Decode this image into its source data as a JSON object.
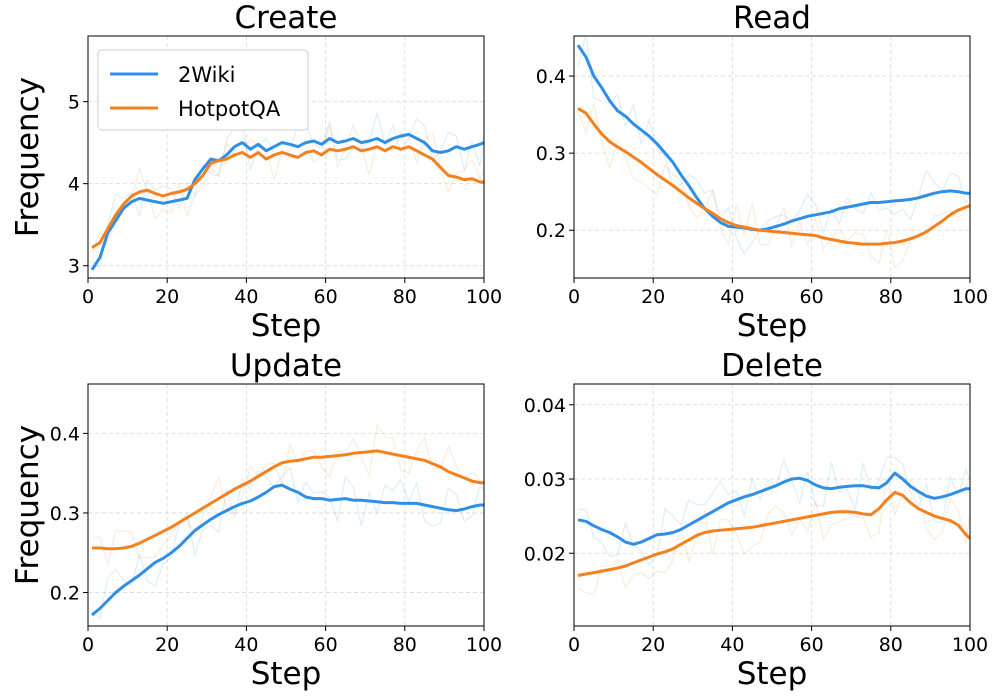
{
  "colors": {
    "2Wiki": "#2f8fe6",
    "HotpotQA": "#f5801e"
  },
  "legend": {
    "items": [
      "2Wiki",
      "HotpotQA"
    ]
  },
  "chart_data": [
    {
      "type": "line",
      "title": "Create",
      "xlabel": "Step",
      "ylabel": "Frequency",
      "xlim": [
        0,
        100
      ],
      "ylim": [
        2.85,
        5.8
      ],
      "xticks": [
        "0",
        "20",
        "40",
        "60",
        "80",
        "100"
      ],
      "yticks": [
        "3",
        "4",
        "5"
      ],
      "x": [
        1,
        3,
        5,
        7,
        9,
        11,
        13,
        15,
        17,
        19,
        21,
        23,
        25,
        27,
        29,
        31,
        33,
        35,
        37,
        39,
        41,
        43,
        45,
        47,
        49,
        51,
        53,
        55,
        57,
        59,
        61,
        63,
        65,
        67,
        69,
        71,
        73,
        75,
        77,
        79,
        81,
        83,
        85,
        87,
        89,
        91,
        93,
        95,
        97,
        99,
        100
      ],
      "series": [
        {
          "name": "2Wiki",
          "values": [
            2.95,
            3.1,
            3.4,
            3.55,
            3.7,
            3.78,
            3.82,
            3.8,
            3.78,
            3.76,
            3.78,
            3.8,
            3.82,
            4.05,
            4.18,
            4.3,
            4.28,
            4.35,
            4.45,
            4.5,
            4.42,
            4.48,
            4.4,
            4.45,
            4.5,
            4.48,
            4.45,
            4.5,
            4.52,
            4.48,
            4.55,
            4.5,
            4.52,
            4.55,
            4.5,
            4.52,
            4.55,
            4.5,
            4.55,
            4.58,
            4.6,
            4.55,
            4.5,
            4.4,
            4.38,
            4.4,
            4.45,
            4.42,
            4.45,
            4.48,
            4.5
          ]
        },
        {
          "name": "HotpotQA",
          "values": [
            3.22,
            3.28,
            3.45,
            3.62,
            3.75,
            3.85,
            3.9,
            3.92,
            3.88,
            3.85,
            3.88,
            3.9,
            3.93,
            4.0,
            4.1,
            4.25,
            4.28,
            4.3,
            4.35,
            4.38,
            4.32,
            4.38,
            4.3,
            4.35,
            4.38,
            4.35,
            4.32,
            4.38,
            4.4,
            4.35,
            4.42,
            4.4,
            4.42,
            4.45,
            4.4,
            4.42,
            4.45,
            4.4,
            4.45,
            4.42,
            4.45,
            4.4,
            4.35,
            4.3,
            4.2,
            4.1,
            4.08,
            4.05,
            4.06,
            4.02,
            4.02
          ]
        }
      ]
    },
    {
      "type": "line",
      "title": "Read",
      "xlabel": "Step",
      "ylabel": "",
      "xlim": [
        0,
        100
      ],
      "ylim": [
        0.138,
        0.452
      ],
      "xticks": [
        "0",
        "20",
        "40",
        "60",
        "80",
        "100"
      ],
      "yticks": [
        "0.2",
        "0.3",
        "0.4"
      ],
      "x": [
        1,
        3,
        5,
        7,
        9,
        11,
        13,
        15,
        17,
        19,
        21,
        23,
        25,
        27,
        29,
        31,
        33,
        35,
        37,
        39,
        41,
        43,
        45,
        47,
        49,
        51,
        53,
        55,
        57,
        59,
        61,
        63,
        65,
        67,
        69,
        71,
        73,
        75,
        77,
        79,
        81,
        83,
        85,
        87,
        89,
        91,
        93,
        95,
        97,
        99,
        100
      ],
      "series": [
        {
          "name": "2Wiki",
          "values": [
            0.44,
            0.425,
            0.4,
            0.385,
            0.368,
            0.355,
            0.348,
            0.338,
            0.33,
            0.322,
            0.312,
            0.3,
            0.288,
            0.272,
            0.258,
            0.242,
            0.228,
            0.218,
            0.21,
            0.205,
            0.204,
            0.203,
            0.201,
            0.2,
            0.202,
            0.205,
            0.208,
            0.212,
            0.215,
            0.218,
            0.22,
            0.222,
            0.224,
            0.228,
            0.23,
            0.232,
            0.234,
            0.236,
            0.236,
            0.237,
            0.238,
            0.239,
            0.24,
            0.242,
            0.245,
            0.248,
            0.25,
            0.251,
            0.25,
            0.248,
            0.248
          ]
        },
        {
          "name": "HotpotQA",
          "values": [
            0.358,
            0.352,
            0.338,
            0.325,
            0.315,
            0.308,
            0.302,
            0.295,
            0.288,
            0.28,
            0.272,
            0.265,
            0.258,
            0.25,
            0.242,
            0.235,
            0.228,
            0.222,
            0.215,
            0.21,
            0.206,
            0.204,
            0.202,
            0.2,
            0.199,
            0.198,
            0.197,
            0.196,
            0.195,
            0.194,
            0.193,
            0.19,
            0.188,
            0.186,
            0.184,
            0.183,
            0.182,
            0.182,
            0.182,
            0.183,
            0.184,
            0.186,
            0.189,
            0.193,
            0.198,
            0.205,
            0.212,
            0.22,
            0.226,
            0.23,
            0.232
          ]
        }
      ]
    },
    {
      "type": "line",
      "title": "Update",
      "xlabel": "Step",
      "ylabel": "Frequency",
      "xlim": [
        0,
        100
      ],
      "ylim": [
        0.158,
        0.462
      ],
      "xticks": [
        "0",
        "20",
        "40",
        "60",
        "80",
        "100"
      ],
      "yticks": [
        "0.2",
        "0.3",
        "0.4"
      ],
      "x": [
        1,
        3,
        5,
        7,
        9,
        11,
        13,
        15,
        17,
        19,
        21,
        23,
        25,
        27,
        29,
        31,
        33,
        35,
        37,
        39,
        41,
        43,
        45,
        47,
        49,
        51,
        53,
        55,
        57,
        59,
        61,
        63,
        65,
        67,
        69,
        71,
        73,
        75,
        77,
        79,
        81,
        83,
        85,
        87,
        89,
        91,
        93,
        95,
        97,
        99,
        100
      ],
      "series": [
        {
          "name": "2Wiki",
          "values": [
            0.172,
            0.18,
            0.19,
            0.2,
            0.208,
            0.215,
            0.222,
            0.23,
            0.238,
            0.243,
            0.25,
            0.258,
            0.268,
            0.278,
            0.285,
            0.292,
            0.298,
            0.303,
            0.308,
            0.312,
            0.315,
            0.32,
            0.326,
            0.333,
            0.335,
            0.33,
            0.326,
            0.32,
            0.318,
            0.318,
            0.316,
            0.317,
            0.318,
            0.316,
            0.316,
            0.315,
            0.314,
            0.313,
            0.313,
            0.312,
            0.312,
            0.312,
            0.31,
            0.308,
            0.306,
            0.304,
            0.303,
            0.305,
            0.308,
            0.31,
            0.31
          ]
        },
        {
          "name": "HotpotQA",
          "values": [
            0.256,
            0.256,
            0.255,
            0.255,
            0.256,
            0.258,
            0.262,
            0.267,
            0.272,
            0.277,
            0.282,
            0.288,
            0.294,
            0.3,
            0.306,
            0.312,
            0.318,
            0.324,
            0.33,
            0.335,
            0.34,
            0.346,
            0.352,
            0.358,
            0.363,
            0.365,
            0.366,
            0.368,
            0.37,
            0.37,
            0.371,
            0.372,
            0.373,
            0.375,
            0.376,
            0.377,
            0.378,
            0.376,
            0.374,
            0.372,
            0.37,
            0.368,
            0.366,
            0.362,
            0.358,
            0.352,
            0.348,
            0.344,
            0.34,
            0.338,
            0.338
          ]
        }
      ]
    },
    {
      "type": "line",
      "title": "Delete",
      "xlabel": "Step",
      "ylabel": "",
      "xlim": [
        0,
        100
      ],
      "ylim": [
        0.0102,
        0.0428
      ],
      "xticks": [
        "0",
        "20",
        "40",
        "60",
        "80",
        "100"
      ],
      "yticks": [
        "0.02",
        "0.03",
        "0.04"
      ],
      "x": [
        1,
        3,
        5,
        7,
        9,
        11,
        13,
        15,
        17,
        19,
        21,
        23,
        25,
        27,
        29,
        31,
        33,
        35,
        37,
        39,
        41,
        43,
        45,
        47,
        49,
        51,
        53,
        55,
        57,
        59,
        61,
        63,
        65,
        67,
        69,
        71,
        73,
        75,
        77,
        79,
        81,
        83,
        85,
        87,
        89,
        91,
        93,
        95,
        97,
        99,
        100
      ],
      "series": [
        {
          "name": "2Wiki",
          "values": [
            0.0245,
            0.0243,
            0.0237,
            0.0232,
            0.0228,
            0.0222,
            0.0215,
            0.0212,
            0.0215,
            0.022,
            0.0225,
            0.0226,
            0.0228,
            0.0232,
            0.0238,
            0.0244,
            0.025,
            0.0256,
            0.0262,
            0.0268,
            0.0272,
            0.0276,
            0.0279,
            0.0283,
            0.0287,
            0.0291,
            0.0296,
            0.03,
            0.0301,
            0.0298,
            0.0292,
            0.0288,
            0.0287,
            0.0289,
            0.029,
            0.0291,
            0.0291,
            0.0289,
            0.0288,
            0.0295,
            0.0308,
            0.03,
            0.029,
            0.0283,
            0.0277,
            0.0274,
            0.0276,
            0.0279,
            0.0283,
            0.0287,
            0.0287
          ]
        },
        {
          "name": "HotpotQA",
          "values": [
            0.017,
            0.0172,
            0.0174,
            0.0176,
            0.0178,
            0.018,
            0.0183,
            0.0187,
            0.0191,
            0.0195,
            0.0199,
            0.0202,
            0.0206,
            0.0212,
            0.0218,
            0.0224,
            0.0228,
            0.023,
            0.0231,
            0.0232,
            0.0233,
            0.0234,
            0.0235,
            0.0237,
            0.0239,
            0.0241,
            0.0243,
            0.0245,
            0.0247,
            0.0249,
            0.0251,
            0.0253,
            0.0255,
            0.0256,
            0.0256,
            0.0255,
            0.0253,
            0.0252,
            0.026,
            0.0272,
            0.0282,
            0.0278,
            0.0268,
            0.026,
            0.0255,
            0.025,
            0.0247,
            0.0244,
            0.0238,
            0.0225,
            0.022
          ]
        }
      ]
    }
  ]
}
